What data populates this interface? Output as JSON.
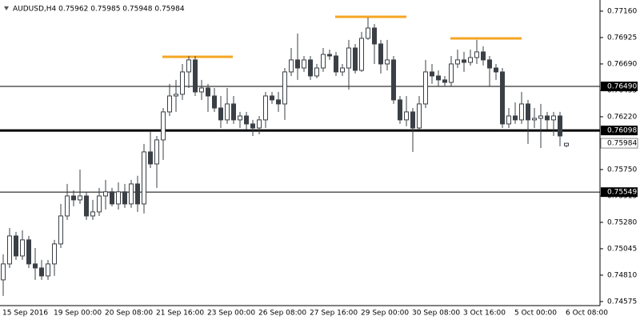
{
  "chart_data": {
    "type": "candlestick",
    "title": "AUDUSD,H4  0.75962 0.75985 0.75948 0.75984",
    "categories": [
      "15 Sep 2016",
      null,
      null,
      null,
      null,
      null,
      null,
      null,
      "19 Sep 00:00",
      null,
      null,
      null,
      null,
      null,
      null,
      null,
      "20 Sep 08:00",
      null,
      null,
      null,
      null,
      null,
      null,
      null,
      "21 Sep 16:00",
      null,
      null,
      null,
      null,
      null,
      null,
      null,
      "23 Sep 00:00",
      null,
      null,
      null,
      null,
      null,
      null,
      null,
      "26 Sep 08:00",
      null,
      null,
      null,
      null,
      null,
      null,
      null,
      "27 Sep 16:00",
      null,
      null,
      null,
      null,
      null,
      null,
      null,
      "29 Sep 00:00",
      null,
      null,
      null,
      null,
      null,
      null,
      null,
      "30 Sep 08:00",
      null,
      null,
      null,
      null,
      null,
      null,
      null,
      "3 Oct 16:00",
      null,
      null,
      null,
      null,
      null,
      null,
      null,
      "5 Oct 00:00",
      null,
      null,
      null,
      null,
      null,
      null,
      null,
      "6 Oct 08:00"
    ],
    "open": [
      0.74768,
      0.7491,
      0.75159,
      0.74981,
      0.75124,
      0.7491,
      0.74874,
      0.74803,
      0.7491,
      0.75088,
      0.75337,
      0.75515,
      0.7548,
      0.75515,
      0.75337,
      0.75373,
      0.75515,
      0.75552,
      0.75444,
      0.75552,
      0.75444,
      0.75622,
      0.75444,
      0.75907,
      0.758,
      0.76014,
      0.76263,
      0.76405,
      0.7642,
      0.76619,
      0.76726,
      0.76441,
      0.76476,
      0.76405,
      0.76298,
      0.76192,
      0.76334,
      0.76192,
      0.76227,
      0.76156,
      0.7612,
      0.76192,
      0.76405,
      0.7637,
      0.76334,
      0.76619,
      0.76726,
      0.76654,
      0.76726,
      0.76583,
      0.76654,
      0.76775,
      0.76761,
      0.76619,
      0.76654,
      0.76832,
      0.76633,
      0.76918,
      0.7701,
      0.76868,
      0.7669,
      0.76726,
      0.7637,
      0.76192,
      0.76263,
      0.7612,
      0.76334,
      0.76619,
      0.76583,
      0.76548,
      0.76526,
      0.7669,
      0.76726,
      0.76704,
      0.76747,
      0.76797,
      0.76726,
      0.76654,
      0.76619,
      0.76156,
      0.76227,
      0.76192,
      0.76334,
      0.76192,
      0.76206,
      0.76227,
      0.76192,
      0.76227,
      0.75962
    ],
    "high": [
      0.74996,
      0.7523,
      0.75195,
      0.75209,
      0.75159,
      0.75052,
      0.74946,
      0.74946,
      0.75124,
      0.75444,
      0.75622,
      0.75565,
      0.7575,
      0.75552,
      0.7548,
      0.75587,
      0.75658,
      0.75587,
      0.75636,
      0.75622,
      0.75658,
      0.75694,
      0.75978,
      0.76085,
      0.76049,
      0.76298,
      0.76512,
      0.76548,
      0.7669,
      0.76761,
      0.76761,
      0.76548,
      0.76512,
      0.76476,
      0.76405,
      0.76476,
      0.76405,
      0.76263,
      0.76263,
      0.76192,
      0.76227,
      0.76441,
      0.76441,
      0.76441,
      0.76654,
      0.76832,
      0.76961,
      0.76761,
      0.76761,
      0.7669,
      0.76832,
      0.76818,
      0.76797,
      0.7669,
      0.76904,
      0.76868,
      0.76975,
      0.77103,
      0.77046,
      0.76904,
      0.76904,
      0.76761,
      0.76405,
      0.76405,
      0.76298,
      0.76405,
      0.76726,
      0.7669,
      0.76633,
      0.76583,
      0.76761,
      0.76818,
      0.76797,
      0.76818,
      0.76904,
      0.76847,
      0.76761,
      0.7669,
      0.76654,
      0.76298,
      0.76348,
      0.76441,
      0.7637,
      0.76298,
      0.76334,
      0.76263,
      0.76263,
      0.76263,
      0.75985
    ],
    "low": [
      0.74625,
      0.74874,
      0.74946,
      0.74946,
      0.74874,
      0.74768,
      0.74768,
      0.74768,
      0.74803,
      0.75052,
      0.75302,
      0.75423,
      0.75444,
      0.75302,
      0.75302,
      0.75337,
      0.75394,
      0.75423,
      0.75394,
      0.75409,
      0.75409,
      0.75373,
      0.75359,
      0.75764,
      0.75587,
      0.75836,
      0.76227,
      0.76263,
      0.7637,
      0.76476,
      0.76405,
      0.7637,
      0.76263,
      0.76263,
      0.7612,
      0.76156,
      0.76156,
      0.7612,
      0.76106,
      0.76049,
      0.76064,
      0.7612,
      0.76334,
      0.76263,
      0.76192,
      0.76583,
      0.76548,
      0.76619,
      0.76548,
      0.76562,
      0.76619,
      0.76726,
      0.76583,
      0.76583,
      0.76462,
      0.76605,
      0.76619,
      0.76904,
      0.7669,
      0.76605,
      0.76633,
      0.76334,
      0.76156,
      0.76135,
      0.75907,
      0.76106,
      0.76298,
      0.76512,
      0.76491,
      0.76491,
      0.76491,
      0.76654,
      0.76619,
      0.76676,
      0.7669,
      0.76676,
      0.76491,
      0.76548,
      0.7612,
      0.7612,
      0.76156,
      0.76156,
      0.75978,
      0.7612,
      0.75942,
      0.76106,
      0.76049,
      0.75957,
      0.75948
    ],
    "close": [
      0.7491,
      0.75159,
      0.74981,
      0.75124,
      0.7491,
      0.74874,
      0.74803,
      0.7491,
      0.75088,
      0.75337,
      0.75515,
      0.7548,
      0.75515,
      0.75337,
      0.75373,
      0.75515,
      0.75552,
      0.75444,
      0.75552,
      0.75444,
      0.75622,
      0.75444,
      0.75907,
      0.758,
      0.76014,
      0.76263,
      0.76405,
      0.7642,
      0.76619,
      0.76726,
      0.76441,
      0.76476,
      0.76405,
      0.76298,
      0.76192,
      0.76334,
      0.76192,
      0.76227,
      0.76156,
      0.7612,
      0.76192,
      0.76405,
      0.7637,
      0.76334,
      0.76619,
      0.76726,
      0.76654,
      0.76726,
      0.76583,
      0.76654,
      0.76775,
      0.76761,
      0.76619,
      0.76654,
      0.76832,
      0.76633,
      0.76918,
      0.7701,
      0.76868,
      0.7669,
      0.76726,
      0.7637,
      0.76192,
      0.76263,
      0.7612,
      0.76334,
      0.76619,
      0.76583,
      0.76548,
      0.76526,
      0.7669,
      0.76726,
      0.76704,
      0.76747,
      0.76797,
      0.76726,
      0.76654,
      0.76619,
      0.76156,
      0.76227,
      0.76192,
      0.76334,
      0.76192,
      0.76206,
      0.76227,
      0.76192,
      0.76227,
      0.76049,
      0.75984
    ],
    "ylim": [
      0.74539,
      0.77245
    ],
    "yticks": [
      {
        "value": 0.7716,
        "label": "0.77160"
      },
      0.76925,
      {
        "value": 0.7669,
        "label": "0.76690"
      },
      0.76455,
      {
        "value": 0.7622,
        "label": "0.76220"
      },
      0.75985,
      {
        "value": 0.7575,
        "label": "0.75750"
      },
      0.75515,
      {
        "value": 0.7528,
        "label": "0.75280"
      },
      0.75045,
      {
        "value": 0.7481,
        "label": "0.74810"
      },
      0.74575
    ],
    "levels": [
      {
        "value": 0.7649,
        "label": "0.76490"
      },
      0.76098,
      0.75549
    ]
  }
}
